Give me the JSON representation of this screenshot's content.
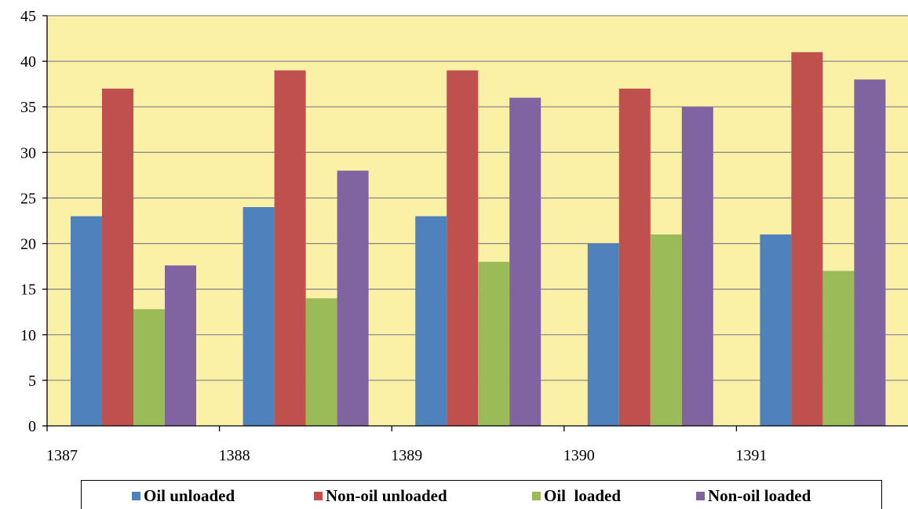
{
  "chart_data": {
    "type": "bar",
    "categories": [
      "1387",
      "1388",
      "1389",
      "1390",
      "1391"
    ],
    "series": [
      {
        "name": "Oil unloaded",
        "color": "#4F81BD",
        "values": [
          23,
          24,
          23,
          20,
          21
        ]
      },
      {
        "name": "Non-oil unloaded",
        "color": "#C0504D",
        "values": [
          37,
          39,
          39,
          37,
          41
        ]
      },
      {
        "name": "Oil  loaded",
        "color": "#9BBB59",
        "values": [
          12.8,
          14,
          18,
          21,
          17
        ]
      },
      {
        "name": "Non-oil loaded",
        "color": "#8064A2",
        "values": [
          17.6,
          28,
          36,
          35,
          38
        ]
      }
    ],
    "ylim": [
      0,
      45
    ],
    "yticks": [
      0,
      5,
      10,
      15,
      20,
      25,
      30,
      35,
      40,
      45
    ],
    "title": "",
    "xlabel": "",
    "ylabel": "",
    "grid": true,
    "plot_background": "#FAF0A6",
    "legend_position": "bottom"
  }
}
